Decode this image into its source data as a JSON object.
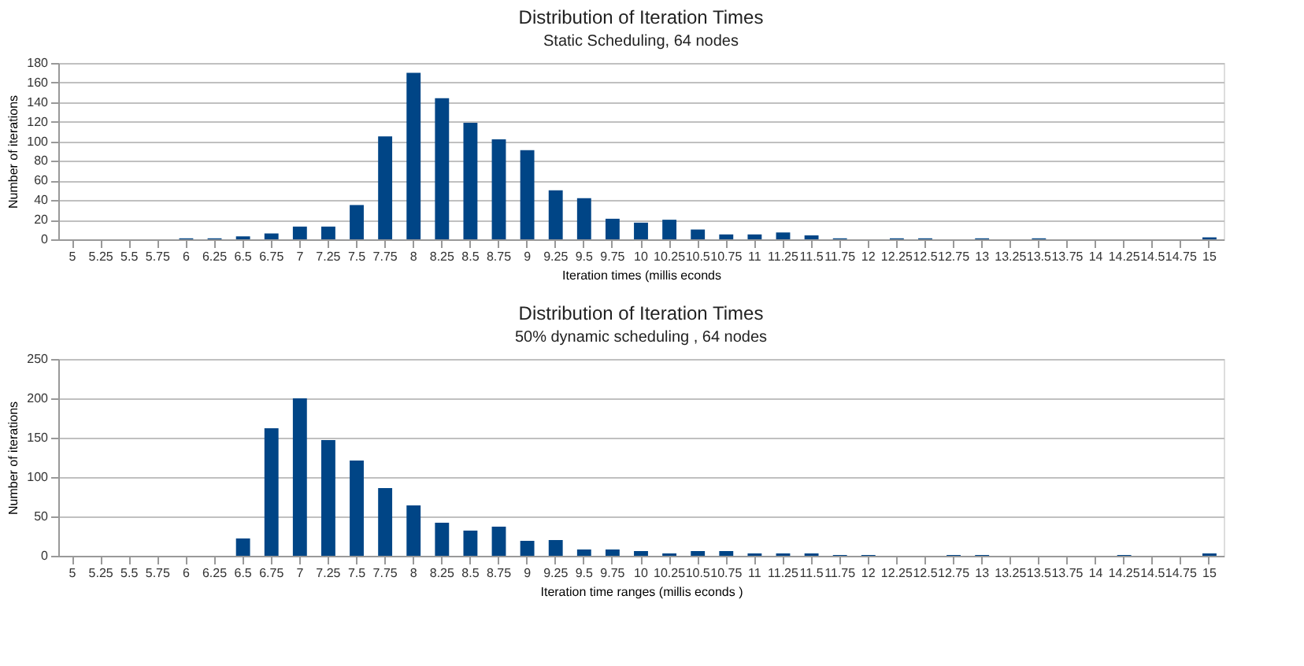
{
  "chart_data": [
    {
      "type": "bar",
      "title": "Distribution of Iteration Times",
      "subtitle": "Static Scheduling, 64 nodes",
      "xlabel": "Iteration times (millis econds",
      "ylabel": "Number of iterations",
      "categories": [
        "5",
        "5.25",
        "5.5",
        "5.75",
        "6",
        "6.25",
        "6.5",
        "6.75",
        "7",
        "7.25",
        "7.5",
        "7.75",
        "8",
        "8.25",
        "8.5",
        "8.75",
        "9",
        "9.25",
        "9.5",
        "9.75",
        "10",
        "10.25",
        "10.5",
        "10.75",
        "11",
        "11.25",
        "11.5",
        "11.75",
        "12",
        "12.25",
        "12.5",
        "12.75",
        "13",
        "13.25",
        "13.5",
        "13.75",
        "14",
        "14.25",
        "14.5",
        "14.75",
        "15"
      ],
      "values": [
        0,
        0,
        0,
        0,
        1,
        1,
        3,
        6,
        13,
        13,
        35,
        105,
        170,
        144,
        119,
        102,
        91,
        50,
        42,
        21,
        17,
        20,
        10,
        5,
        5,
        7,
        4,
        1,
        0,
        1,
        1,
        0,
        1,
        0,
        1,
        0,
        0,
        0,
        0,
        0,
        2
      ],
      "color": "#004586",
      "ylim": [
        0,
        180
      ],
      "yticks": [
        0,
        20,
        40,
        60,
        80,
        100,
        120,
        140,
        160,
        180
      ],
      "grid": "y"
    },
    {
      "type": "bar",
      "title": "Distribution of Iteration Times",
      "subtitle": "50% dynamic scheduling , 64 nodes",
      "xlabel": "Iteration time ranges (millis econds )",
      "ylabel": "Number of iterations",
      "categories": [
        "5",
        "5.25",
        "5.5",
        "5.75",
        "6",
        "6.25",
        "6.5",
        "6.75",
        "7",
        "7.25",
        "7.5",
        "7.75",
        "8",
        "8.25",
        "8.5",
        "8.75",
        "9",
        "9.25",
        "9.5",
        "9.75",
        "10",
        "10.25",
        "10.5",
        "10.75",
        "11",
        "11.25",
        "11.5",
        "11.75",
        "12",
        "12.25",
        "12.5",
        "12.75",
        "13",
        "13.25",
        "13.5",
        "13.75",
        "14",
        "14.25",
        "14.5",
        "14.75",
        "15"
      ],
      "values": [
        0,
        0,
        0,
        0,
        0,
        0,
        22,
        162,
        200,
        147,
        121,
        86,
        64,
        42,
        32,
        37,
        19,
        20,
        8,
        8,
        6,
        3,
        6,
        6,
        3,
        3,
        3,
        1,
        1,
        0,
        0,
        1,
        1,
        0,
        0,
        0,
        0,
        1,
        0,
        0,
        3
      ],
      "color": "#004586",
      "ylim": [
        0,
        250
      ],
      "yticks": [
        0,
        50,
        100,
        150,
        200,
        250
      ],
      "grid": "y"
    }
  ]
}
